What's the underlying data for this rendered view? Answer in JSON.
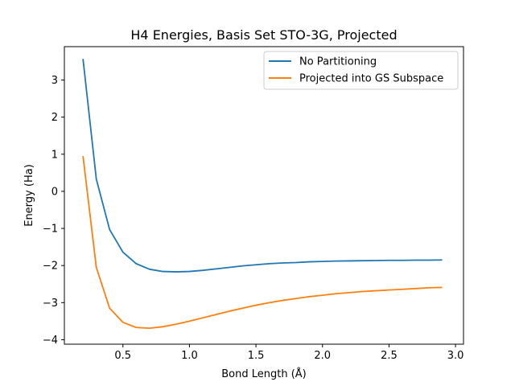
{
  "chart_data": {
    "type": "line",
    "title": "H4 Energies, Basis Set STO-3G, Projected",
    "xlabel": "Bond Length (Å)",
    "ylabel": "Energy (Ha)",
    "xlim": [
      0.06,
      3.06
    ],
    "ylim": [
      -4.12,
      3.9
    ],
    "xticks": [
      0.5,
      1.0,
      1.5,
      2.0,
      2.5,
      3.0
    ],
    "xtick_labels": [
      "0.5",
      "1.0",
      "1.5",
      "2.0",
      "2.5",
      "3.0"
    ],
    "yticks": [
      -4,
      -3,
      -2,
      -1,
      0,
      1,
      2,
      3
    ],
    "ytick_labels": [
      "−4",
      "−3",
      "−2",
      "−1",
      "0",
      "1",
      "2",
      "3"
    ],
    "grid": false,
    "legend_position": "top-right",
    "x": [
      0.2,
      0.3,
      0.4,
      0.5,
      0.6,
      0.7,
      0.8,
      0.9,
      1.0,
      1.1,
      1.2,
      1.3,
      1.4,
      1.5,
      1.6,
      1.7,
      1.8,
      1.9,
      2.0,
      2.1,
      2.2,
      2.3,
      2.4,
      2.5,
      2.6,
      2.7,
      2.8,
      2.9
    ],
    "series": [
      {
        "name": "No Partitioning",
        "color": "#1f77b4",
        "values": [
          3.57,
          0.33,
          -1.03,
          -1.64,
          -1.95,
          -2.1,
          -2.16,
          -2.17,
          -2.16,
          -2.13,
          -2.09,
          -2.05,
          -2.01,
          -1.98,
          -1.95,
          -1.93,
          -1.92,
          -1.9,
          -1.89,
          -1.88,
          -1.875,
          -1.87,
          -1.865,
          -1.86,
          -1.86,
          -1.855,
          -1.855,
          -1.85
        ]
      },
      {
        "name": "Projected into GS Subspace",
        "color": "#ff7f0e",
        "values": [
          0.95,
          -2.05,
          -3.15,
          -3.53,
          -3.67,
          -3.69,
          -3.65,
          -3.58,
          -3.5,
          -3.41,
          -3.32,
          -3.23,
          -3.15,
          -3.07,
          -3.0,
          -2.94,
          -2.89,
          -2.84,
          -2.8,
          -2.76,
          -2.73,
          -2.7,
          -2.68,
          -2.66,
          -2.64,
          -2.62,
          -2.6,
          -2.59
        ]
      }
    ]
  }
}
